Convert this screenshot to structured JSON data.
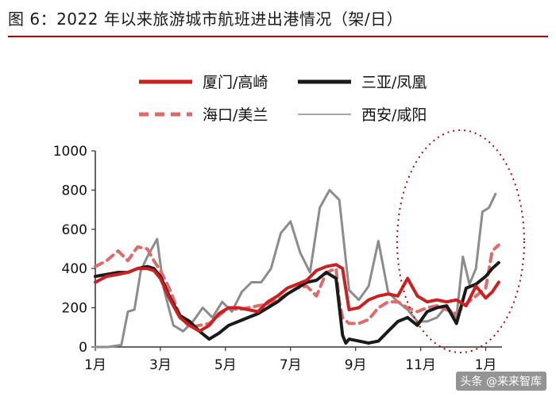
{
  "figure": {
    "title": "图 6：2022 年以来旅游城市航班进出港情况（架/日）",
    "watermark": "头条 @来来智库"
  },
  "colors": {
    "title_rule": "#c00000",
    "xiamen": "#cc1f1f",
    "sanya": "#1a1a1a",
    "haikou": "#e06a6a",
    "xian": "#8c8c8c",
    "highlight": "#c00000"
  },
  "chart_data": {
    "type": "line",
    "title": "",
    "xlabel": "",
    "ylabel": "",
    "ylim": [
      0,
      1000
    ],
    "yticks": [
      0,
      200,
      400,
      600,
      800,
      1000
    ],
    "xlim": [
      1,
      13.5
    ],
    "xticks": [
      1,
      3,
      5,
      7,
      9,
      11,
      13
    ],
    "xtick_labels": [
      "1月",
      "3月",
      "5月",
      "7月",
      "9月",
      "11月",
      "1月"
    ],
    "grid": false,
    "legend_position": "top",
    "annotation": "dotted ellipse highlighting Dec 2022 – Jan 2023",
    "series": [
      {
        "name": "厦门/高崎",
        "style": "solid-thick",
        "color_key": "xiamen",
        "x": [
          1.0,
          1.35,
          1.7,
          2.0,
          2.3,
          2.6,
          2.8,
          3.0,
          3.3,
          3.6,
          3.9,
          4.2,
          4.5,
          4.8,
          5.1,
          5.4,
          5.7,
          6.0,
          6.3,
          6.6,
          6.9,
          7.2,
          7.5,
          7.8,
          8.1,
          8.4,
          8.6,
          8.8,
          9.1,
          9.4,
          9.7,
          10.0,
          10.3,
          10.6,
          10.9,
          11.2,
          11.5,
          11.8,
          12.1,
          12.4,
          12.7,
          13.0,
          13.2,
          13.4
        ],
        "y": [
          330,
          360,
          370,
          380,
          400,
          400,
          390,
          350,
          240,
          150,
          110,
          80,
          110,
          170,
          200,
          200,
          190,
          180,
          230,
          260,
          300,
          320,
          340,
          390,
          410,
          420,
          400,
          190,
          200,
          240,
          260,
          270,
          260,
          350,
          260,
          230,
          240,
          230,
          240,
          210,
          310,
          250,
          280,
          330
        ]
      },
      {
        "name": "三亚/凤凰",
        "style": "solid-thick",
        "color_key": "sanya",
        "x": [
          1.0,
          1.35,
          1.7,
          2.0,
          2.3,
          2.6,
          2.8,
          3.0,
          3.3,
          3.6,
          3.9,
          4.2,
          4.5,
          4.8,
          5.1,
          5.4,
          5.7,
          6.0,
          6.3,
          6.6,
          6.9,
          7.2,
          7.5,
          7.8,
          8.1,
          8.4,
          8.6,
          8.7,
          8.8,
          9.1,
          9.4,
          9.7,
          10.0,
          10.3,
          10.6,
          10.9,
          11.2,
          11.5,
          11.8,
          12.1,
          12.4,
          12.7,
          13.0,
          13.2,
          13.4
        ],
        "y": [
          360,
          370,
          380,
          380,
          400,
          410,
          400,
          360,
          250,
          160,
          130,
          80,
          40,
          70,
          110,
          130,
          150,
          170,
          200,
          230,
          270,
          300,
          330,
          340,
          380,
          350,
          60,
          20,
          40,
          30,
          20,
          30,
          80,
          130,
          150,
          110,
          180,
          200,
          210,
          120,
          300,
          320,
          360,
          400,
          430
        ]
      },
      {
        "name": "海口/美兰",
        "style": "dashed",
        "color_key": "haikou",
        "x": [
          1.0,
          1.35,
          1.7,
          2.0,
          2.3,
          2.6,
          2.8,
          3.0,
          3.3,
          3.6,
          3.9,
          4.2,
          4.5,
          4.8,
          5.1,
          5.4,
          5.7,
          6.0,
          6.3,
          6.6,
          6.9,
          7.2,
          7.5,
          7.8,
          8.1,
          8.4,
          8.5,
          8.6,
          8.8,
          9.1,
          9.4,
          9.7,
          10.0,
          10.3,
          10.6,
          10.9,
          11.2,
          11.5,
          11.8,
          12.1,
          12.4,
          12.7,
          13.0,
          13.2,
          13.4
        ],
        "y": [
          410,
          440,
          490,
          440,
          510,
          500,
          440,
          390,
          290,
          160,
          100,
          110,
          120,
          160,
          200,
          190,
          200,
          210,
          220,
          240,
          270,
          300,
          310,
          260,
          380,
          400,
          230,
          150,
          120,
          120,
          140,
          200,
          230,
          230,
          200,
          180,
          200,
          210,
          190,
          170,
          220,
          260,
          300,
          490,
          520
        ]
      },
      {
        "name": "西安/咸阳",
        "style": "solid-thin",
        "color_key": "xian",
        "x": [
          1.0,
          1.4,
          1.8,
          2.0,
          2.2,
          2.4,
          2.6,
          2.9,
          3.1,
          3.4,
          3.7,
          4.0,
          4.3,
          4.6,
          4.9,
          5.2,
          5.5,
          5.8,
          6.1,
          6.4,
          6.7,
          7.0,
          7.3,
          7.6,
          7.9,
          8.2,
          8.5,
          8.8,
          9.1,
          9.4,
          9.7,
          10.0,
          10.3,
          10.6,
          10.9,
          11.2,
          11.5,
          11.8,
          12.1,
          12.3,
          12.5,
          12.7,
          12.9,
          13.1,
          13.3
        ],
        "y": [
          0,
          0,
          10,
          180,
          190,
          390,
          460,
          550,
          300,
          110,
          80,
          130,
          200,
          150,
          230,
          180,
          280,
          330,
          330,
          400,
          580,
          640,
          480,
          380,
          710,
          800,
          750,
          290,
          240,
          310,
          540,
          280,
          230,
          190,
          130,
          130,
          150,
          210,
          150,
          460,
          320,
          400,
          690,
          710,
          780
        ]
      }
    ]
  }
}
